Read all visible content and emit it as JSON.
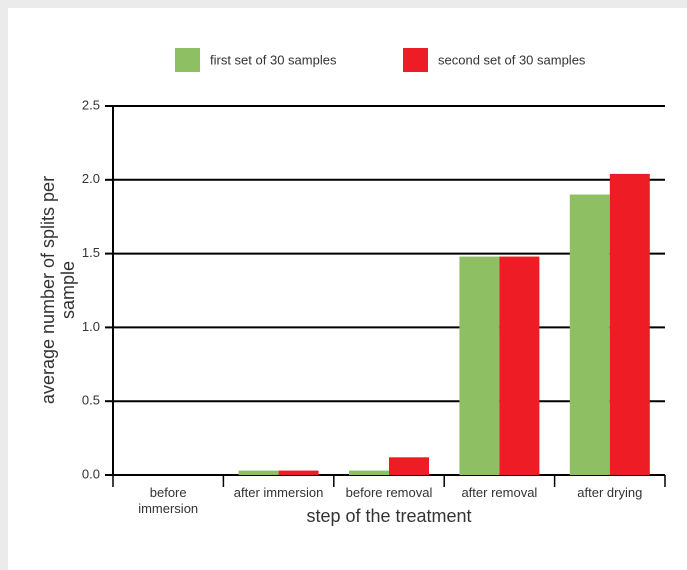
{
  "chart_data": {
    "type": "bar",
    "categories": [
      "before immersion",
      "after immersion",
      "before removal",
      "after removal",
      "after drying"
    ],
    "series": [
      {
        "name": "first set of 30 samples",
        "color": "#8fbf63",
        "values": [
          0,
          0.03,
          0.03,
          1.48,
          1.9
        ]
      },
      {
        "name": "second set of 30 samples",
        "color": "#ee1c25",
        "values": [
          0,
          0.03,
          0.12,
          1.48,
          2.04
        ]
      }
    ],
    "xlabel": "step of the treatment",
    "ylabel": "average number of splits per sample",
    "ylim": [
      0,
      2.5
    ],
    "yticks": [
      {
        "value": 0,
        "label": "0.0"
      },
      0.5,
      {
        "value": 1,
        "label": "1.0"
      },
      1.5,
      {
        "value": 2,
        "label": "2.0"
      },
      2.5
    ],
    "grid": true
  }
}
